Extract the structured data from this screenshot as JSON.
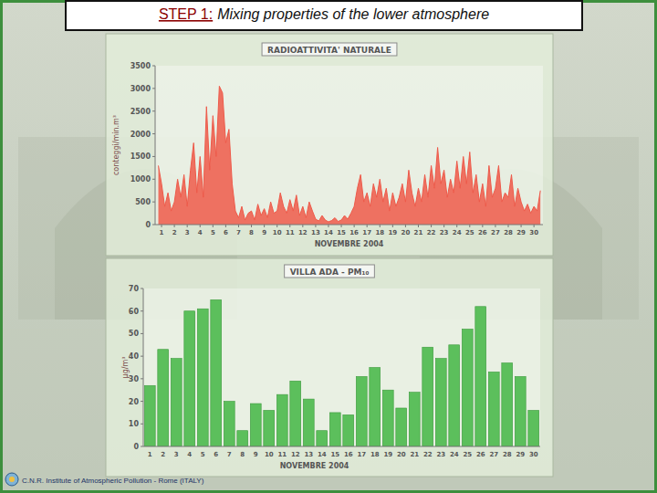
{
  "header": {
    "step": "STEP 1:",
    "title": "Mixing properties of the lower atmosphere"
  },
  "footer": {
    "text": "C.N.R. Institute of Atmospheric Pollution - Rome (ITALY)"
  },
  "chart_data": [
    {
      "type": "area",
      "title": "RADIOATTIVITA' NATURALE",
      "y_label": "conteggi/min.m³",
      "x_label": "NOVEMBRE 2004",
      "x": [
        0.75,
        1,
        1.25,
        1.5,
        1.75,
        2,
        2.25,
        2.5,
        2.75,
        3,
        3.25,
        3.5,
        3.75,
        4,
        4.25,
        4.5,
        4.75,
        5,
        5.25,
        5.5,
        5.75,
        6,
        6.25,
        6.5,
        6.75,
        7,
        7.25,
        7.5,
        7.75,
        8,
        8.25,
        8.5,
        8.75,
        9,
        9.25,
        9.5,
        9.75,
        10,
        10.25,
        10.5,
        10.75,
        11,
        11.25,
        11.5,
        11.75,
        12,
        12.25,
        12.5,
        12.75,
        13,
        13.25,
        13.5,
        13.75,
        14,
        14.25,
        14.5,
        14.75,
        15,
        15.25,
        15.5,
        15.75,
        16,
        16.25,
        16.5,
        16.75,
        17,
        17.25,
        17.5,
        17.75,
        18,
        18.25,
        18.5,
        18.75,
        19,
        19.25,
        19.5,
        19.75,
        20,
        20.25,
        20.5,
        20.75,
        21,
        21.25,
        21.5,
        21.75,
        22,
        22.25,
        22.5,
        22.75,
        23,
        23.25,
        23.5,
        23.75,
        24,
        24.25,
        24.5,
        24.75,
        25,
        25.25,
        25.5,
        25.75,
        26,
        26.25,
        26.5,
        26.75,
        27,
        27.25,
        27.5,
        27.75,
        28,
        28.25,
        28.5,
        28.75,
        29,
        29.25,
        29.5,
        29.75,
        30,
        30.25,
        30.5
      ],
      "values": [
        1300,
        900,
        400,
        700,
        300,
        500,
        1000,
        600,
        1100,
        400,
        1200,
        1800,
        700,
        1500,
        600,
        2600,
        1200,
        2400,
        1500,
        3050,
        2900,
        1800,
        2100,
        900,
        300,
        150,
        400,
        100,
        250,
        300,
        100,
        450,
        200,
        350,
        150,
        500,
        250,
        300,
        700,
        400,
        250,
        550,
        300,
        650,
        200,
        400,
        150,
        500,
        300,
        120,
        80,
        200,
        100,
        60,
        90,
        150,
        70,
        100,
        200,
        120,
        250,
        400,
        800,
        1100,
        500,
        700,
        400,
        900,
        600,
        1000,
        500,
        800,
        300,
        700,
        400,
        600,
        900,
        500,
        1200,
        700,
        400,
        800,
        500,
        1100,
        600,
        1300,
        800,
        1700,
        900,
        1200,
        600,
        1000,
        700,
        1400,
        800,
        1500,
        900,
        1600,
        700,
        1100,
        500,
        900,
        400,
        1300,
        600,
        800,
        1300,
        500,
        700,
        600,
        1100,
        400,
        800,
        500,
        300,
        450,
        250,
        400,
        300,
        750
      ],
      "color": "#ee5a4a",
      "xlim": [
        0.5,
        30.7
      ],
      "xticks": [
        1,
        2,
        3,
        4,
        5,
        6,
        7,
        8,
        9,
        10,
        11,
        12,
        13,
        14,
        15,
        16,
        17,
        18,
        19,
        20,
        21,
        22,
        23,
        24,
        25,
        26,
        27,
        28,
        29,
        30
      ],
      "ylim": [
        0,
        3500
      ],
      "yticks": [
        0,
        500,
        1000,
        1500,
        2000,
        2500,
        3000,
        3500
      ],
      "grid": false
    },
    {
      "type": "bar",
      "title": "VILLA ADA - PM₁₀",
      "y_label": "µg/m³",
      "x_label": "NOVEMBRE 2004",
      "categories": [
        "1",
        "2",
        "3",
        "4",
        "5",
        "6",
        "7",
        "8",
        "9",
        "10",
        "11",
        "12",
        "13",
        "14",
        "15",
        "16",
        "17",
        "18",
        "19",
        "20",
        "21",
        "22",
        "23",
        "24",
        "25",
        "26",
        "27",
        "28",
        "29",
        "30"
      ],
      "values": [
        27,
        43,
        39,
        60,
        61,
        65,
        20,
        7,
        19,
        16,
        23,
        29,
        21,
        7,
        15,
        14,
        31,
        35,
        25,
        17,
        24,
        44,
        39,
        45,
        52,
        62,
        33,
        37,
        31,
        16
      ],
      "color": "#5cbf5c",
      "ylim": [
        0,
        70
      ],
      "yticks": [
        0,
        10,
        20,
        30,
        40,
        50,
        60,
        70
      ],
      "grid": false
    }
  ]
}
